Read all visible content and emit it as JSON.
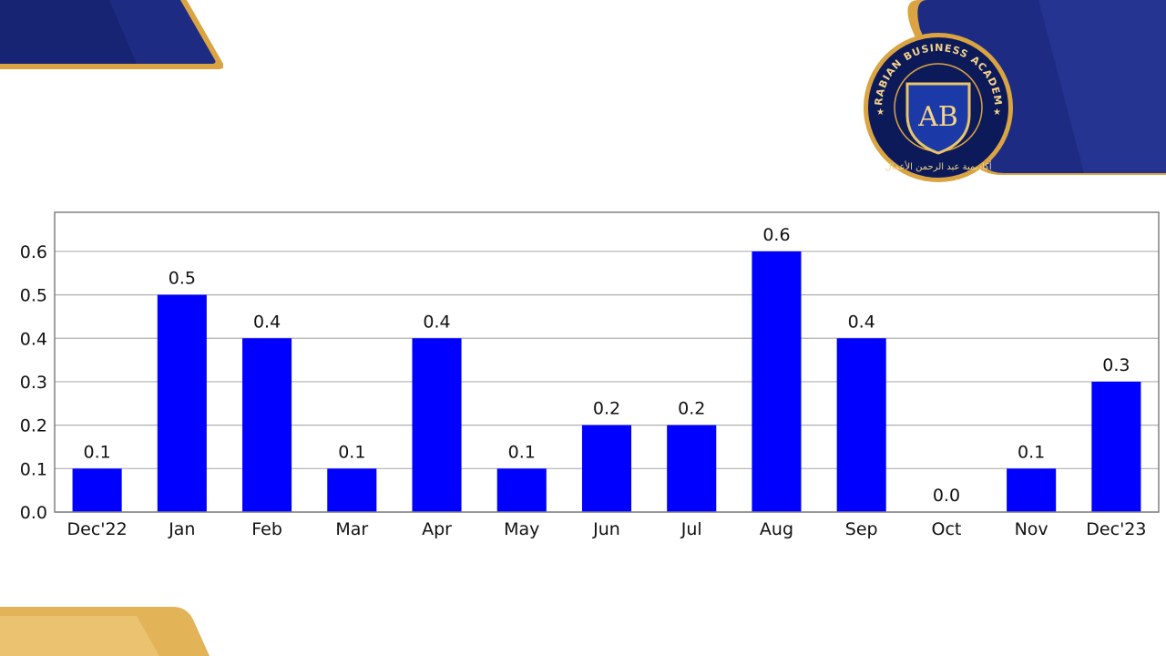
{
  "logo": {
    "initials": "AB",
    "arc_text": "ARABIAN BUSINESS ACADEMY",
    "arabic_text": "أكاديمية عبد الرحمن الأعمال"
  },
  "colors": {
    "bar": "#0000ff",
    "banner_navy": "#1a2a7a",
    "banner_gold": "#d9a441"
  },
  "chart_data": {
    "type": "bar",
    "categories": [
      "Dec'22",
      "Jan",
      "Feb",
      "Mar",
      "Apr",
      "May",
      "Jun",
      "Jul",
      "Aug",
      "Sep",
      "Oct",
      "Nov",
      "Dec'23"
    ],
    "values": [
      0.1,
      0.5,
      0.4,
      0.1,
      0.4,
      0.1,
      0.2,
      0.2,
      0.6,
      0.4,
      0.0,
      0.1,
      0.3
    ],
    "data_labels": [
      "0.1",
      "0.5",
      "0.4",
      "0.1",
      "0.4",
      "0.1",
      "0.2",
      "0.2",
      "0.6",
      "0.4",
      "0.0",
      "0.1",
      "0.3"
    ],
    "yticks": [
      "0.0",
      "0.1",
      "0.2",
      "0.3",
      "0.4",
      "0.5",
      "0.6"
    ],
    "ylim": [
      0,
      0.69
    ],
    "title": "",
    "xlabel": "",
    "ylabel": "",
    "grid": "horizontal"
  }
}
